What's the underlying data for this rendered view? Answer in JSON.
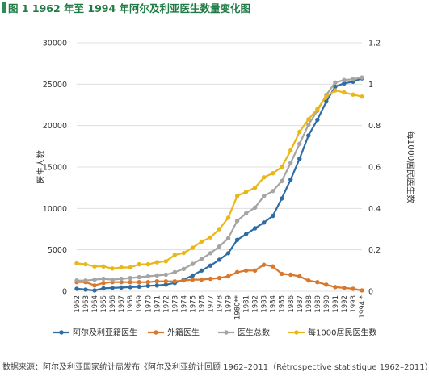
{
  "figure_title": "图 1 1962 年至 1994 年阿尔及利亚医生数量变化图",
  "source_note": "数据来源：阿尔及利亚国家统计局发布《阿尔及利亚统计回顾 1962–2011（Rétrospective statistique 1962–2011）》",
  "chart_data": {
    "type": "line",
    "title": "",
    "ylabel": "医生人数",
    "y2label": "每1000居民医生数",
    "ylim": [
      0,
      30000
    ],
    "y2lim": [
      0,
      1.2
    ],
    "yticks": [
      0,
      5000,
      10000,
      15000,
      20000,
      25000,
      30000
    ],
    "y2ticks": [
      0,
      0.2,
      0.4,
      0.6,
      0.8,
      1,
      1.2
    ],
    "y2tick_labels": [
      "0",
      "0.2",
      "0.4",
      "0.6",
      "0.8",
      "1",
      "1.2"
    ],
    "grid": true,
    "legend_position": "bottom",
    "categories": [
      "1962",
      "1963",
      "1964",
      "1965",
      "1966",
      "1967",
      "1968",
      "1969",
      "1970",
      "1971",
      "1972",
      "1973",
      "1974",
      "1975",
      "1976",
      "1977",
      "1978",
      "1979",
      "1980**",
      "1981",
      "1982",
      "1983",
      "1984",
      "1985",
      "1986",
      "1987",
      "1988",
      "1989",
      "1990",
      "1991",
      "1992",
      "1993",
      "1994 *"
    ],
    "series": [
      {
        "name": "阿尔及利亚籍医生",
        "color": "#2e6da4",
        "axis": "left",
        "values": [
          300,
          200,
          100,
          350,
          400,
          450,
          500,
          550,
          650,
          700,
          800,
          1000,
          1400,
          1900,
          2500,
          3100,
          3800,
          4600,
          6200,
          6900,
          7600,
          8300,
          9100,
          11200,
          13500,
          16000,
          18800,
          20700,
          22900,
          24700,
          25100,
          25300,
          25700
        ]
      },
      {
        "name": "外籍医生",
        "color": "#d9772b",
        "axis": "left",
        "values": [
          1100,
          1100,
          700,
          1000,
          1100,
          1100,
          1100,
          1100,
          1100,
          1200,
          1200,
          1200,
          1300,
          1400,
          1400,
          1500,
          1600,
          1800,
          2300,
          2500,
          2500,
          3200,
          3000,
          2100,
          2000,
          1800,
          1300,
          1100,
          800,
          500,
          400,
          300,
          100
        ]
      },
      {
        "name": "医生总数",
        "color": "#a5a5a5",
        "axis": "left",
        "values": [
          1300,
          1300,
          1400,
          1500,
          1400,
          1500,
          1600,
          1700,
          1800,
          1900,
          2000,
          2300,
          2700,
          3300,
          3900,
          4600,
          5400,
          6400,
          8500,
          9400,
          10100,
          11500,
          12100,
          13300,
          15500,
          17800,
          20100,
          21800,
          23700,
          25200,
          25500,
          25600,
          25800
        ]
      },
      {
        "name": "每1000居民医生数",
        "color": "#e9b718",
        "axis": "right",
        "values": [
          0.135,
          0.13,
          0.12,
          0.12,
          0.11,
          0.115,
          0.115,
          0.13,
          0.13,
          0.14,
          0.145,
          0.175,
          0.185,
          0.21,
          0.24,
          0.26,
          0.3,
          0.355,
          0.46,
          0.48,
          0.5,
          0.55,
          0.57,
          0.6,
          0.68,
          0.77,
          0.83,
          0.88,
          0.94,
          0.97,
          0.96,
          0.95,
          0.94
        ]
      }
    ]
  }
}
